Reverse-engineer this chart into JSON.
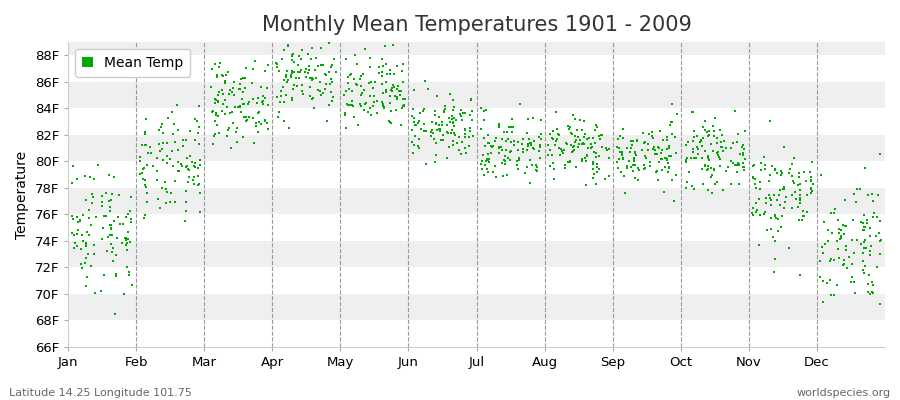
{
  "title": "Monthly Mean Temperatures 1901 - 2009",
  "ylabel": "Temperature",
  "ylim": [
    66,
    89
  ],
  "yticks": [
    66,
    68,
    70,
    72,
    74,
    76,
    78,
    80,
    82,
    84,
    86,
    88
  ],
  "ytick_labels": [
    "66F",
    "68F",
    "70F",
    "72F",
    "74F",
    "76F",
    "78F",
    "80F",
    "82F",
    "84F",
    "86F",
    "88F"
  ],
  "months": [
    "Jan",
    "Feb",
    "Mar",
    "Apr",
    "May",
    "Jun",
    "Jul",
    "Aug",
    "Sep",
    "Oct",
    "Nov",
    "Dec"
  ],
  "month_means": [
    75.0,
    79.5,
    84.5,
    86.5,
    85.0,
    82.5,
    81.0,
    81.0,
    80.5,
    80.5,
    77.5,
    74.0
  ],
  "month_stds": [
    2.5,
    2.0,
    1.5,
    1.5,
    1.5,
    1.2,
    1.3,
    1.2,
    1.2,
    1.2,
    2.0,
    2.5
  ],
  "year_start": 1901,
  "year_end": 2009,
  "dot_color": "#00aa00",
  "dot_size": 3,
  "plot_bg_light": "#efefef",
  "plot_bg_dark": "#e0e0e0",
  "fig_bg": "#ffffff",
  "grid_color": "#ffffff",
  "vline_color": "#999999",
  "legend_label": "Mean Temp",
  "subtitle_left": "Latitude 14.25 Longitude 101.75",
  "subtitle_right": "worldspecies.org",
  "title_fontsize": 15,
  "label_fontsize": 10,
  "tick_fontsize": 9.5,
  "n_months": 12
}
